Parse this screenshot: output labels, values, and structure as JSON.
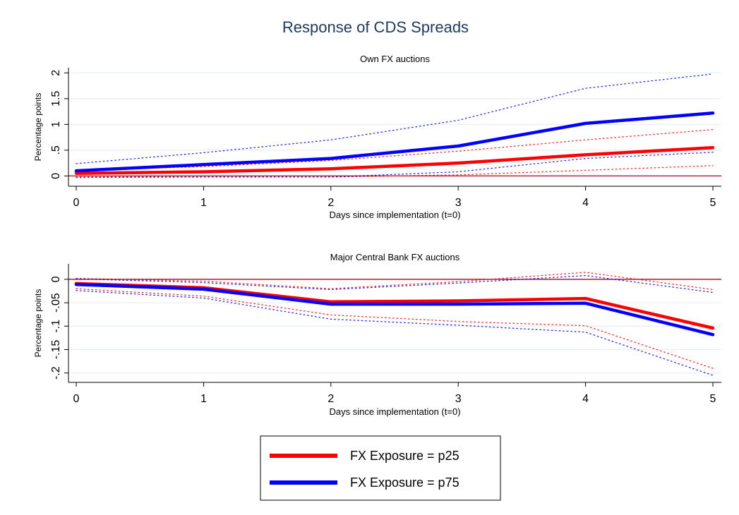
{
  "figure": {
    "title": "Response of CDS Spreads"
  },
  "colors": {
    "p25": "#ff0000",
    "p75": "#0000ff",
    "zero_line": "#b0001a",
    "grid": "#e8eef2",
    "title": "#1c3a5e",
    "text": "#000000"
  },
  "legend": {
    "position": "bottom-center",
    "items": [
      {
        "label": "FX Exposure = p25",
        "color": "#ff0000"
      },
      {
        "label": "FX Exposure = p75",
        "color": "#0000ff"
      }
    ]
  },
  "chart_data": [
    {
      "type": "line",
      "title": "Own FX auctions",
      "xlabel": "Days since implementation (t=0)",
      "ylabel": "Percentage points",
      "x": [
        0,
        1,
        2,
        3,
        4,
        5
      ],
      "xticks": [
        "0",
        "1",
        "2",
        "3",
        "4",
        "5"
      ],
      "yticks": [
        {
          "value": 0,
          "label": "0"
        },
        {
          "value": 0.5,
          "label": ".5"
        },
        {
          "value": 1,
          "label": "1"
        },
        {
          "value": 1.5,
          "label": "1.5"
        },
        {
          "value": 2,
          "label": "2"
        }
      ],
      "xlim": [
        0,
        5
      ],
      "ylim": [
        -0.2,
        2.1
      ],
      "grid": true,
      "zero_line": true,
      "series": [
        {
          "name": "FX Exposure = p25",
          "color": "#ff0000",
          "style": "solid",
          "values": [
            0.05,
            0.08,
            0.14,
            0.25,
            0.41,
            0.55
          ]
        },
        {
          "name": "FX Exposure = p75",
          "color": "#0000ff",
          "style": "solid",
          "values": [
            0.1,
            0.22,
            0.34,
            0.58,
            1.02,
            1.22
          ]
        },
        {
          "color": "#ff0000",
          "style": "dotted",
          "values": [
            0.11,
            0.18,
            0.3,
            0.48,
            0.7,
            0.9
          ]
        },
        {
          "color": "#ff0000",
          "style": "dotted",
          "values": [
            -0.01,
            -0.02,
            -0.02,
            0.02,
            0.11,
            0.2
          ]
        },
        {
          "color": "#0000ff",
          "style": "dotted",
          "values": [
            0.24,
            0.45,
            0.7,
            1.08,
            1.7,
            1.98
          ]
        },
        {
          "color": "#0000ff",
          "style": "dotted",
          "values": [
            -0.03,
            -0.02,
            -0.02,
            0.08,
            0.34,
            0.46
          ]
        }
      ]
    },
    {
      "type": "line",
      "title": "Major Central Bank FX auctions",
      "xlabel": "Days since implementation (t=0)",
      "ylabel": "Percentage points",
      "x": [
        0,
        1,
        2,
        3,
        4,
        5
      ],
      "xticks": [
        "0",
        "1",
        "2",
        "3",
        "4",
        "5"
      ],
      "yticks": [
        {
          "value": 0,
          "label": "0"
        },
        {
          "value": -0.05,
          "label": "-.05"
        },
        {
          "value": -0.1,
          "label": "-.1"
        },
        {
          "value": -0.15,
          "label": "-.15"
        },
        {
          "value": -0.2,
          "label": "-.2"
        }
      ],
      "xlim": [
        0,
        5
      ],
      "ylim": [
        -0.22,
        0.033
      ],
      "grid": true,
      "zero_line": true,
      "series": [
        {
          "name": "FX Exposure = p25",
          "color": "#ff0000",
          "style": "solid",
          "values": [
            -0.009,
            -0.018,
            -0.048,
            -0.046,
            -0.041,
            -0.104
          ]
        },
        {
          "name": "FX Exposure = p75",
          "color": "#0000ff",
          "style": "solid",
          "values": [
            -0.011,
            -0.021,
            -0.053,
            -0.053,
            -0.051,
            -0.118
          ]
        },
        {
          "color": "#ff0000",
          "style": "dotted",
          "values": [
            0.002,
            -0.004,
            -0.02,
            -0.005,
            0.015,
            -0.022
          ]
        },
        {
          "color": "#ff0000",
          "style": "dotted",
          "values": [
            -0.02,
            -0.036,
            -0.076,
            -0.09,
            -0.099,
            -0.19
          ]
        },
        {
          "color": "#0000ff",
          "style": "dotted",
          "values": [
            0.001,
            -0.007,
            -0.022,
            -0.008,
            0.008,
            -0.028
          ]
        },
        {
          "color": "#0000ff",
          "style": "dotted",
          "values": [
            -0.024,
            -0.04,
            -0.085,
            -0.098,
            -0.113,
            -0.205
          ]
        }
      ]
    }
  ]
}
